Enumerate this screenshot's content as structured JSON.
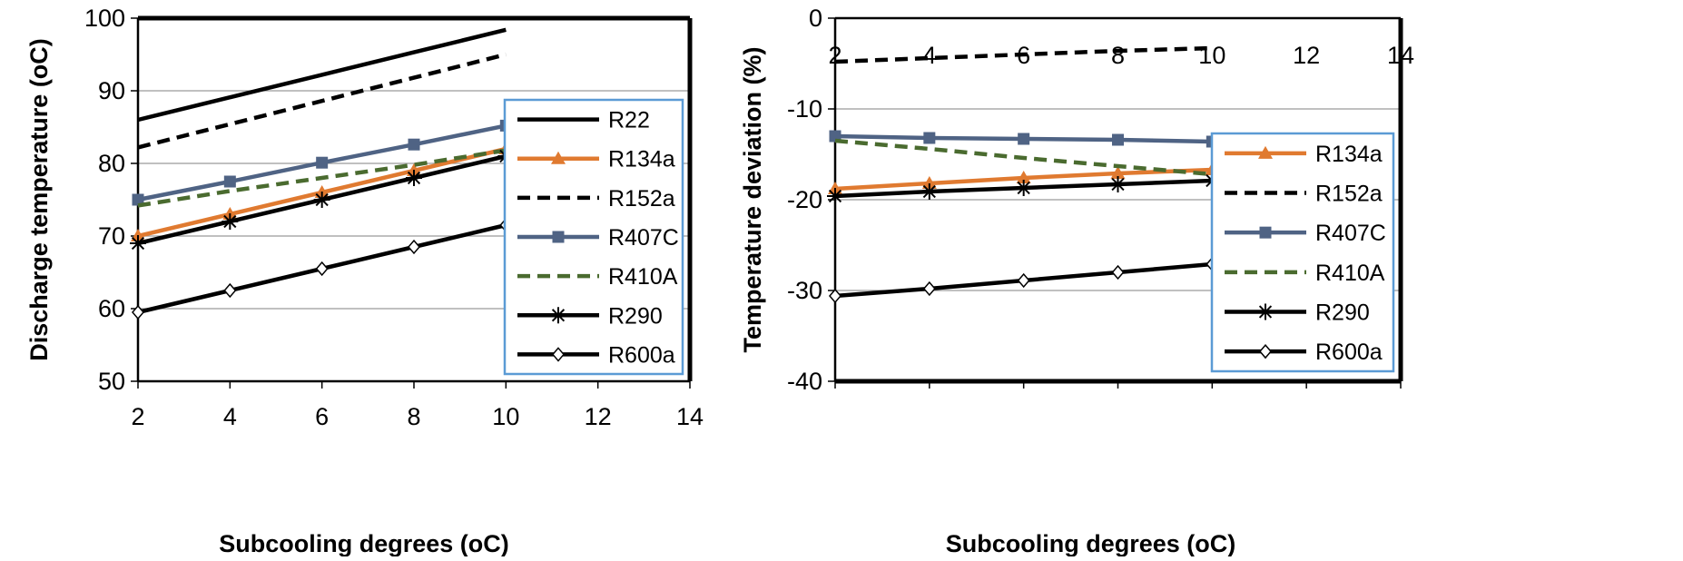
{
  "chart_data": [
    {
      "type": "line",
      "title": "",
      "xlabel": "Subcooling degrees (oC)",
      "ylabel": "Discharge temperature (oC)",
      "xlim": [
        2,
        14
      ],
      "ylim": [
        50,
        100
      ],
      "xticks": [
        "2",
        "4",
        "6",
        "8",
        "10",
        "12",
        "14"
      ],
      "yticks": [
        "50",
        "60",
        "70",
        "80",
        "90",
        "100"
      ],
      "x": [
        2,
        4,
        6,
        8,
        10
      ],
      "grid": true,
      "legend_position": "right",
      "series": [
        {
          "name": "R22",
          "values": [
            86,
            89.1,
            92.2,
            95.3,
            98.4
          ],
          "color": "#000000",
          "dash": "solid",
          "marker": "none"
        },
        {
          "name": "R134a",
          "values": [
            70,
            73,
            76,
            79,
            82
          ],
          "color": "#E07A30",
          "dash": "solid",
          "marker": "triangle"
        },
        {
          "name": "R152a",
          "values": [
            82.2,
            85.4,
            88.6,
            91.8,
            95
          ],
          "color": "#000000",
          "dash": "dashed",
          "marker": "none"
        },
        {
          "name": "R407C",
          "values": [
            75,
            77.5,
            80.1,
            82.6,
            85.2
          ],
          "color": "#4F6384",
          "dash": "solid",
          "marker": "square"
        },
        {
          "name": "R410A",
          "values": [
            74.2,
            76.2,
            78,
            79.8,
            81.8
          ],
          "color": "#4A6B2F",
          "dash": "dashed",
          "marker": "none"
        },
        {
          "name": "R290",
          "values": [
            69,
            72,
            75,
            78,
            81
          ],
          "color": "#000000",
          "dash": "solid",
          "marker": "star"
        },
        {
          "name": "R600a",
          "values": [
            59.5,
            62.5,
            65.5,
            68.5,
            71.5
          ],
          "color": "#000000",
          "dash": "solid",
          "marker": "diamond"
        }
      ]
    },
    {
      "type": "line",
      "title": "",
      "xlabel": "Subcooling degrees (oC)",
      "ylabel": "Temperature deviation (%)",
      "xlim": [
        2,
        14
      ],
      "ylim": [
        -40,
        0
      ],
      "xticks": [
        "2",
        "4",
        "6",
        "8",
        "10",
        "12",
        "14"
      ],
      "yticks": [
        "-40",
        "-30",
        "-20",
        "-10",
        "0"
      ],
      "x": [
        2,
        4,
        6,
        8,
        10
      ],
      "grid": true,
      "legend_position": "right",
      "series": [
        {
          "name": "R134a",
          "values": [
            -18.8,
            -18.2,
            -17.6,
            -17.1,
            -16.7
          ],
          "color": "#E07A30",
          "dash": "solid",
          "marker": "triangle"
        },
        {
          "name": "R152a",
          "values": [
            -4.8,
            -4.4,
            -4,
            -3.6,
            -3.3
          ],
          "color": "#000000",
          "dash": "dashed",
          "marker": "none"
        },
        {
          "name": "R407C",
          "values": [
            -13,
            -13.2,
            -13.3,
            -13.4,
            -13.6
          ],
          "color": "#4F6384",
          "dash": "solid",
          "marker": "square"
        },
        {
          "name": "R410A",
          "values": [
            -13.5,
            -14.4,
            -15.4,
            -16.3,
            -17.2
          ],
          "color": "#4A6B2F",
          "dash": "dashed",
          "marker": "none"
        },
        {
          "name": "R290",
          "values": [
            -19.6,
            -19.1,
            -18.7,
            -18.3,
            -17.9
          ],
          "color": "#000000",
          "dash": "solid",
          "marker": "star"
        },
        {
          "name": "R600a",
          "values": [
            -30.6,
            -29.8,
            -28.9,
            -28,
            -27.1
          ],
          "color": "#000000",
          "dash": "solid",
          "marker": "diamond"
        }
      ]
    }
  ]
}
